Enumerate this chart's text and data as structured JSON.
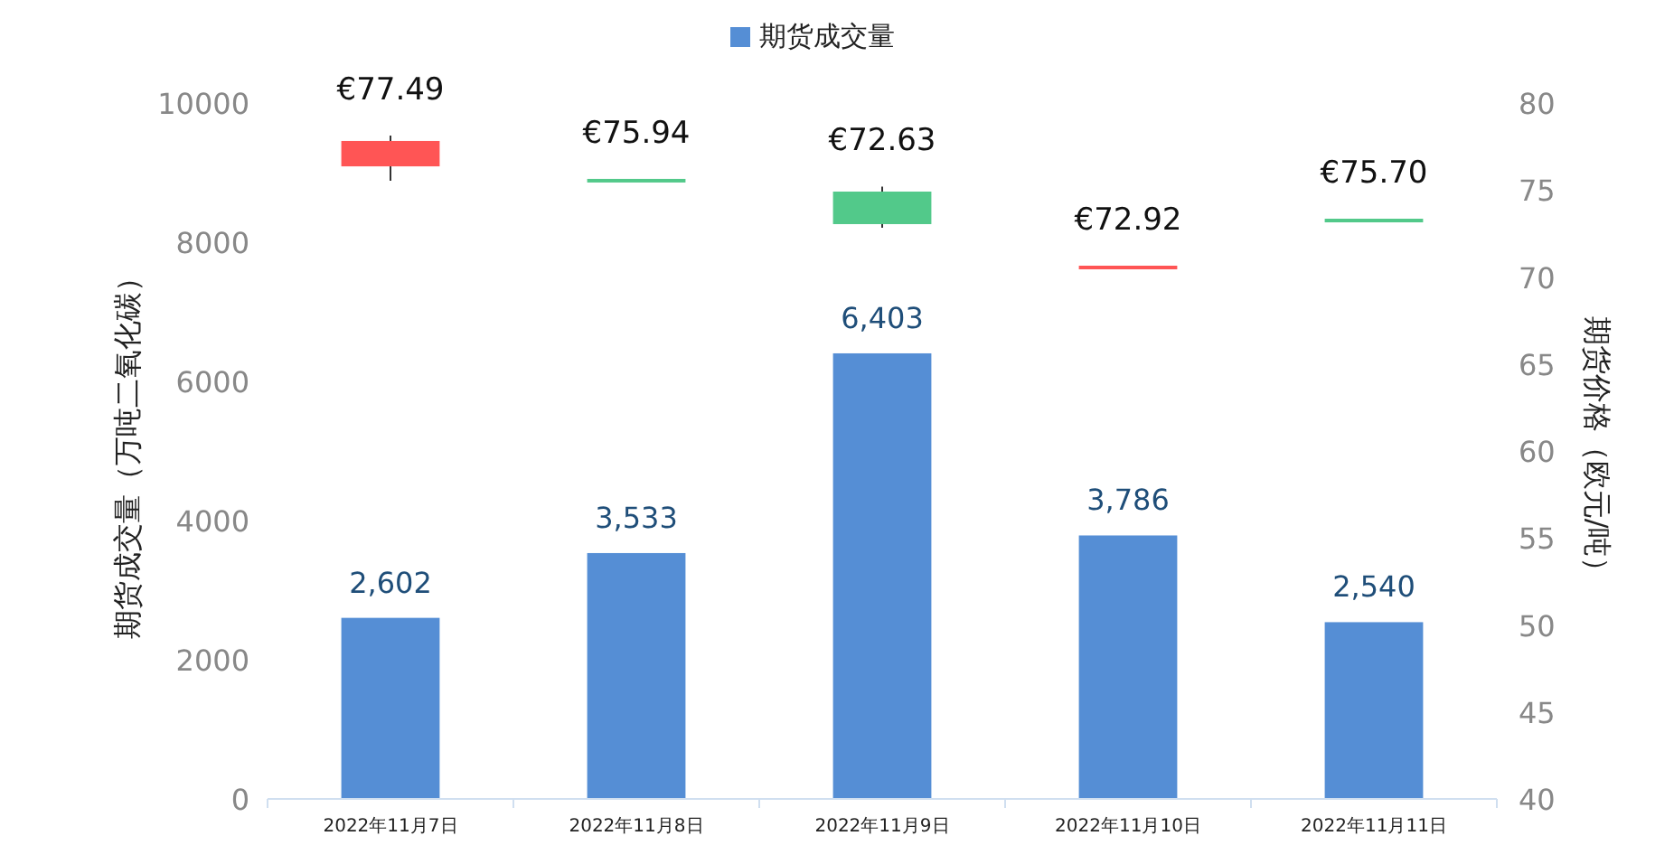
{
  "chart_data": {
    "type": "bar",
    "categories": [
      "2022年11月7日",
      "2022年11月8日",
      "2022年11月9日",
      "2022年11月10日",
      "2022年11月11日"
    ],
    "ylabel": "期货成交量（万吨二氧化碳）",
    "y2label": "期货价格（欧元/吨）",
    "ylim": [
      0,
      10000
    ],
    "yticks": [
      0,
      2000,
      4000,
      6000,
      8000,
      10000
    ],
    "y2lim": [
      40,
      80
    ],
    "y2ticks": [
      40,
      45,
      50,
      55,
      60,
      65,
      70,
      75,
      80
    ],
    "legend": "top",
    "grid": false,
    "series": [
      {
        "name": "期货成交量",
        "color": "#558ed5",
        "values": [
          2602,
          3533,
          6403,
          3786,
          2540
        ],
        "value_labels": [
          "2,602",
          "3,533",
          "6,403",
          "3,786",
          "2,540"
        ]
      },
      {
        "type": "candlestick",
        "axis": "y2",
        "colors": [
          "#ff5555",
          "#52c98a",
          "#52c98a",
          "#ff5555",
          "#52c98a"
        ],
        "ohlc": [
          [
            76.36,
            78.13,
            75.53,
            77.82
          ],
          [
            75.64,
            75.64,
            75.64,
            75.64
          ],
          [
            74.91,
            75.2,
            72.83,
            73.04
          ],
          [
            70.65,
            70.65,
            70.65,
            70.65
          ],
          [
            73.35,
            73.35,
            73.35,
            73.35
          ]
        ]
      }
    ],
    "annotations": [
      "€77.49",
      "€75.94",
      "€72.63",
      "€72.92",
      "€75.70"
    ]
  }
}
